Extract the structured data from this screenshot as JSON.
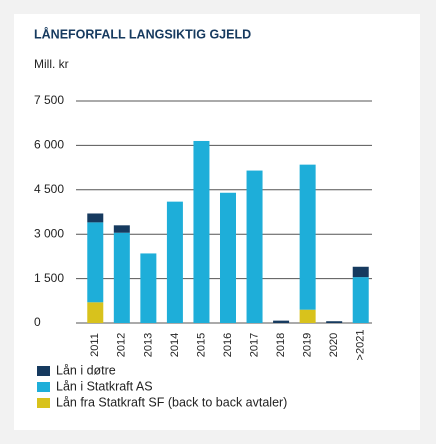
{
  "chart_data": {
    "type": "stacked_bar",
    "title": "LÅNEFORFALL LANGSIKTIG GJELD",
    "subtitle": "Mill. kr",
    "categories": [
      "2011",
      "2012",
      "2013",
      "2014",
      "2015",
      "2016",
      "2017",
      "2018",
      "2019",
      "2020",
      ">2021"
    ],
    "series": [
      {
        "name": "Lån fra Statkraft SF (back to back avtaler)",
        "color": "#d8c21c",
        "values": [
          700,
          0,
          0,
          0,
          0,
          0,
          0,
          0,
          450,
          0,
          0
        ]
      },
      {
        "name": "Lån i Statkraft AS",
        "color": "#1eaed9",
        "values": [
          2700,
          3050,
          2350,
          4100,
          6150,
          4400,
          5150,
          0,
          4900,
          0,
          1550
        ]
      },
      {
        "name": "Lån i døtre",
        "color": "#163a5f",
        "values": [
          300,
          250,
          0,
          0,
          0,
          0,
          0,
          80,
          0,
          60,
          350
        ]
      }
    ],
    "ylim": [
      0,
      7500
    ],
    "yticks": [
      0,
      {
        "value": 1500,
        "label": "1 500"
      },
      {
        "value": 3000,
        "label": "3 000"
      },
      {
        "value": 4500,
        "label": "4 500"
      },
      {
        "value": 6000,
        "label": "6 000"
      },
      {
        "value": 7500,
        "label": "7 500"
      }
    ],
    "grid": true
  }
}
